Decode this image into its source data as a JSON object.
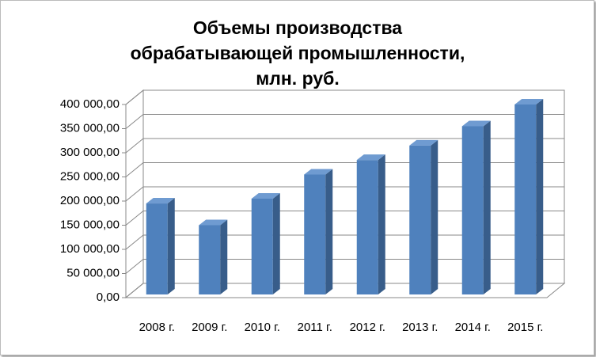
{
  "chart_data": {
    "type": "bar3d",
    "title": "Объемы производства обрабатывающей промышленности, млн. руб.",
    "categories": [
      "2008 г.",
      "2009 г.",
      "2010 г.",
      "2011 г.",
      "2012 г.",
      "2013 г.",
      "2014 г.",
      "2015 г."
    ],
    "values": [
      195000,
      150000,
      205000,
      255000,
      285000,
      315000,
      355000,
      400000
    ],
    "color": "#4f81bd",
    "ylim": [
      0,
      400000
    ],
    "yticks": [
      {
        "value": 0,
        "label": "0,00"
      },
      {
        "value": 50000,
        "label": "50 000,00"
      },
      {
        "value": 100000,
        "label": "100 000,00"
      },
      {
        "value": 150000,
        "label": "150 000,00"
      },
      {
        "value": 200000,
        "label": "200 000,00"
      },
      {
        "value": 250000,
        "label": "250 000,00"
      },
      {
        "value": 300000,
        "label": "300 000,00"
      },
      {
        "value": 350000,
        "label": "350 000,00"
      },
      {
        "value": 400000,
        "label": "400 000,00"
      }
    ],
    "grid": true
  }
}
